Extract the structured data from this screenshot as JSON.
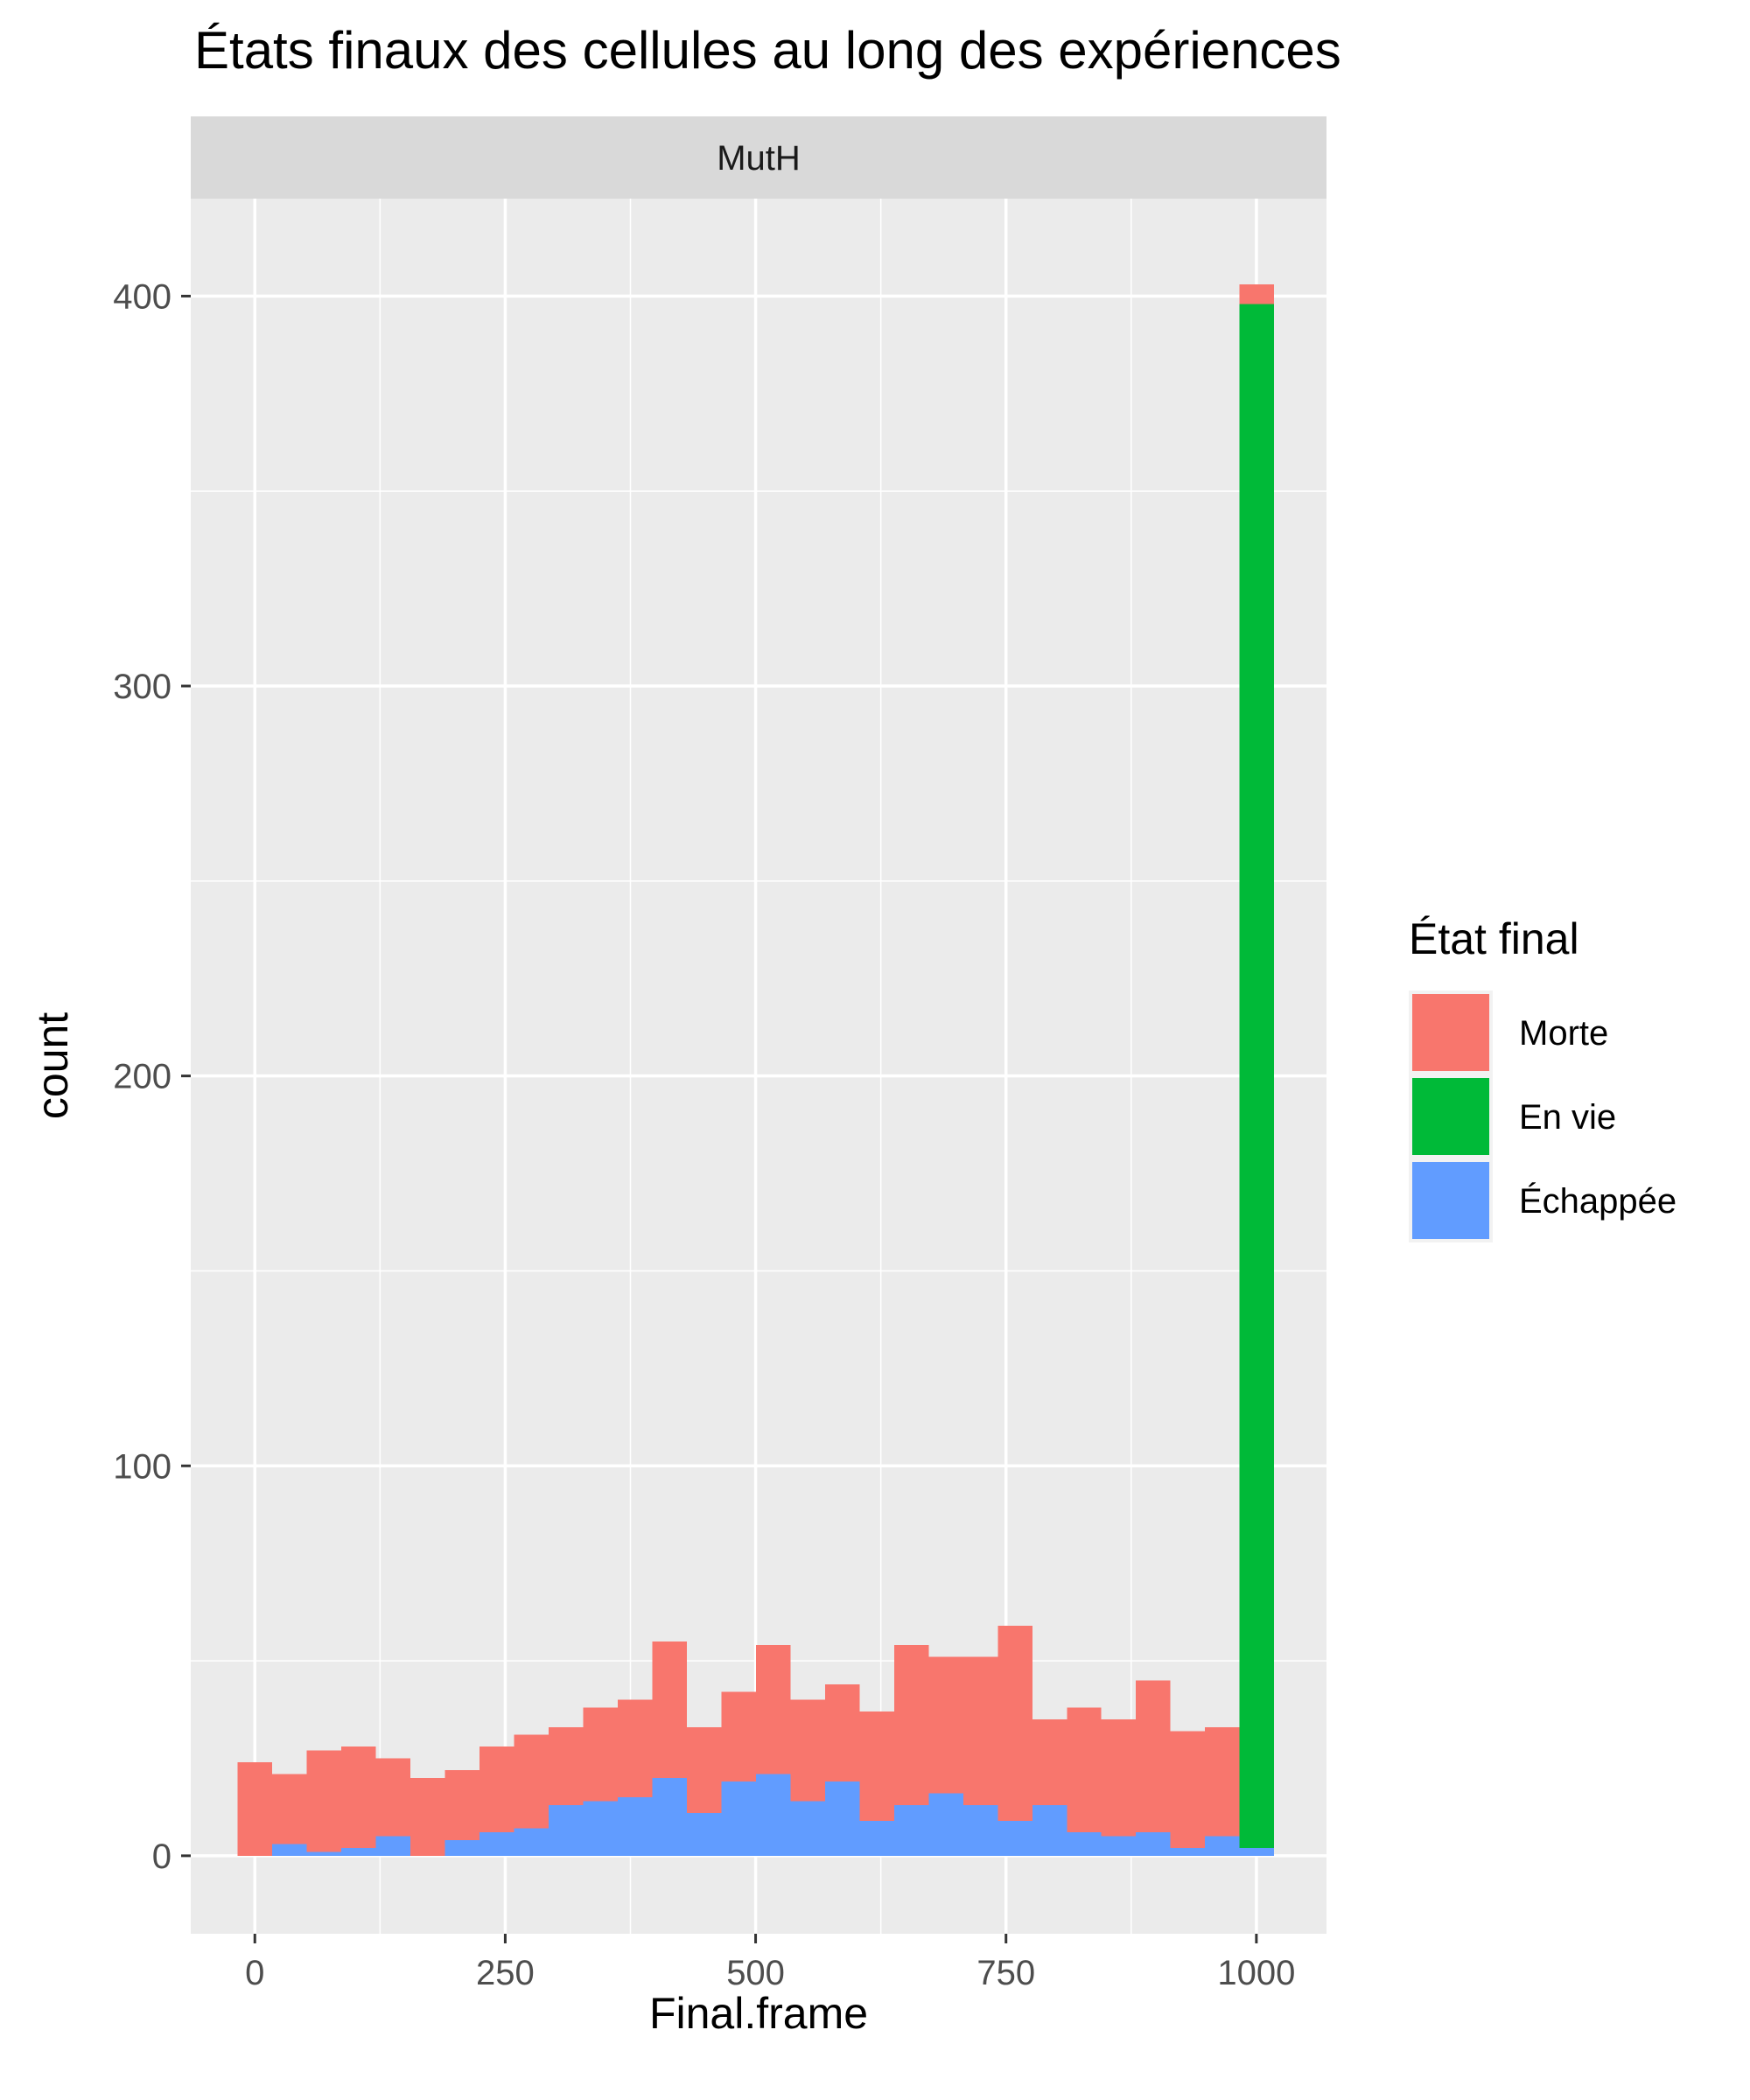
{
  "chart_data": {
    "type": "bar",
    "subtype": "stacked-histogram",
    "title": "États finaux des cellules au long des expériences",
    "facet": "MutH",
    "xlabel": "Final.frame",
    "ylabel": "count",
    "xlim": [
      -64,
      1070
    ],
    "ylim": [
      -20,
      425
    ],
    "x_ticks": [
      0,
      250,
      500,
      750,
      1000
    ],
    "x_tick_labels": [
      "0",
      "250",
      "500",
      "750",
      "1000"
    ],
    "y_ticks": [
      0,
      100,
      200,
      300,
      400
    ],
    "y_tick_labels": [
      "0",
      "100",
      "200",
      "300",
      "400"
    ],
    "grid": true,
    "legend": {
      "title": "État final",
      "position": "right",
      "entries": [
        {
          "label": "Morte",
          "color": "#F8766D"
        },
        {
          "label": "En vie",
          "color": "#00BA38"
        },
        {
          "label": "Échappée",
          "color": "#619CFF"
        }
      ]
    },
    "bin_width": 34.5,
    "x": [
      0,
      34.5,
      69,
      103.5,
      138,
      172.5,
      207,
      241.5,
      276,
      310.5,
      345,
      379.5,
      414,
      448.5,
      483,
      517.5,
      552,
      586.5,
      621,
      655.5,
      690,
      724.5,
      759,
      793.5,
      828,
      862.5,
      897,
      931.5,
      966,
      1000.5
    ],
    "series": [
      {
        "name": "Échappée",
        "color": "#619CFF",
        "values": [
          0,
          3,
          1,
          2,
          5,
          0,
          4,
          6,
          7,
          13,
          14,
          15,
          20,
          11,
          19,
          21,
          14,
          19,
          9,
          13,
          16,
          13,
          9,
          13,
          6,
          5,
          6,
          2,
          5,
          2
        ]
      },
      {
        "name": "En vie",
        "color": "#00BA38",
        "values": [
          0,
          0,
          0,
          0,
          0,
          0,
          0,
          0,
          0,
          0,
          0,
          0,
          0,
          0,
          0,
          0,
          0,
          0,
          0,
          0,
          0,
          0,
          0,
          0,
          0,
          0,
          0,
          0,
          0,
          396
        ]
      },
      {
        "name": "Morte",
        "color": "#F8766D",
        "values": [
          24,
          18,
          26,
          26,
          20,
          20,
          18,
          22,
          24,
          20,
          24,
          25,
          35,
          22,
          23,
          33,
          26,
          25,
          28,
          41,
          35,
          38,
          50,
          22,
          32,
          30,
          39,
          30,
          28,
          5
        ]
      }
    ]
  }
}
